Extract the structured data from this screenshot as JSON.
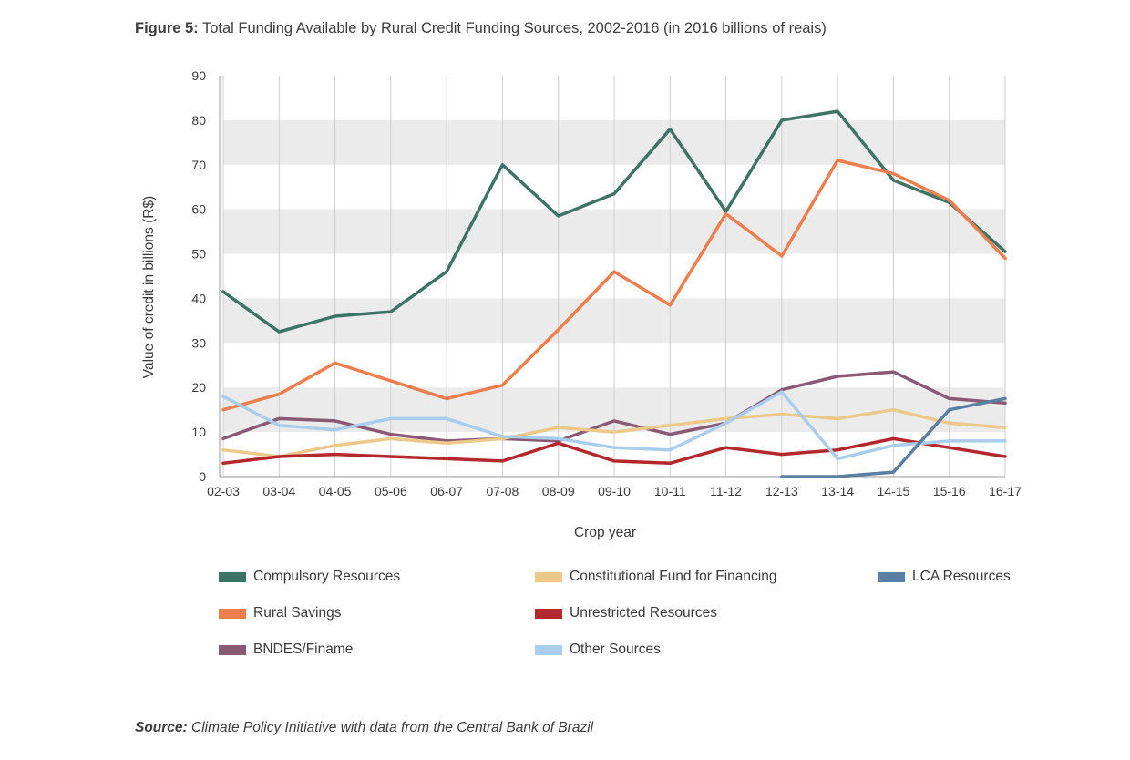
{
  "title": {
    "label": "Figure 5:",
    "text": "Total Funding Available by Rural Credit Funding Sources, 2002-2016 (in 2016 billions of reais)"
  },
  "source": {
    "label": "Source:",
    "text": "Climate Policy Initiative with data from the Central Bank of Brazil"
  },
  "chart_data": {
    "type": "line",
    "xlabel": "Crop year",
    "ylabel": "Value of credit in billions (R$)",
    "ylim": [
      0,
      90
    ],
    "yticks": [
      "0",
      "10",
      "20",
      "30",
      "40",
      "50",
      "60",
      "70",
      "80",
      "90"
    ],
    "grid": "alternating horizontal bands",
    "legend_position": "bottom",
    "categories": [
      "02-03",
      "03-04",
      "04-05",
      "05-06",
      "06-07",
      "07-08",
      "08-09",
      "09-10",
      "10-11",
      "11-12",
      "12-13",
      "13-14",
      "14-15",
      "15-16",
      "16-17"
    ],
    "series": [
      {
        "name": "Compulsory Resources",
        "color": "#3d7466",
        "values": [
          41.5,
          32.5,
          36,
          37,
          46,
          70,
          58.5,
          63.5,
          78,
          59.5,
          80,
          82,
          66.5,
          61.5,
          50.5
        ]
      },
      {
        "name": "Rural Savings",
        "color": "#ed7e4d",
        "values": [
          15,
          18.5,
          25.5,
          21.5,
          17.5,
          20.5,
          33,
          46,
          38.5,
          59,
          49.5,
          71,
          68,
          62,
          49
        ]
      },
      {
        "name": "BNDES/Finame",
        "color": "#8a5a74",
        "values": [
          8.5,
          13,
          12.5,
          9.5,
          8,
          8.5,
          8,
          12.5,
          9.5,
          12,
          19.5,
          22.5,
          23.5,
          17.5,
          16.5
        ]
      },
      {
        "name": "Constitutional Fund for Financing",
        "color": "#ecc98a",
        "values": [
          6,
          4.5,
          7,
          8.5,
          7.5,
          8.5,
          11,
          10,
          11.5,
          13,
          14,
          13,
          15,
          12,
          11
        ]
      },
      {
        "name": "Unrestricted Resources",
        "color": "#b3282c",
        "values": [
          3,
          4.5,
          5,
          4.5,
          4,
          3.5,
          7.5,
          3.5,
          3,
          6.5,
          5,
          6,
          8.5,
          6.5,
          4.5
        ]
      },
      {
        "name": "Other Sources",
        "color": "#a9cdec",
        "values": [
          18,
          11.5,
          10.5,
          13,
          13,
          9,
          8.5,
          6.5,
          6,
          12,
          19,
          4,
          7,
          8,
          8
        ]
      },
      {
        "name": "LCA Resources",
        "color": "#5a7fa3",
        "values": [
          null,
          null,
          null,
          null,
          null,
          null,
          null,
          null,
          null,
          null,
          0,
          0,
          1,
          15,
          17.5
        ]
      }
    ]
  },
  "legend": [
    {
      "label": "Compulsory Resources",
      "color": "#3d7466"
    },
    {
      "label": "Constitutional Fund for Financing",
      "color": "#ecc98a"
    },
    {
      "label": "LCA Resources",
      "color": "#5a7fa3"
    },
    {
      "label": "Rural Savings",
      "color": "#ed7e4d"
    },
    {
      "label": "Unrestricted Resources",
      "color": "#b3282c"
    },
    {
      "label": "BNDES/Finame",
      "color": "#8a5a74"
    },
    {
      "label": "Other Sources",
      "color": "#a9cdec"
    }
  ]
}
